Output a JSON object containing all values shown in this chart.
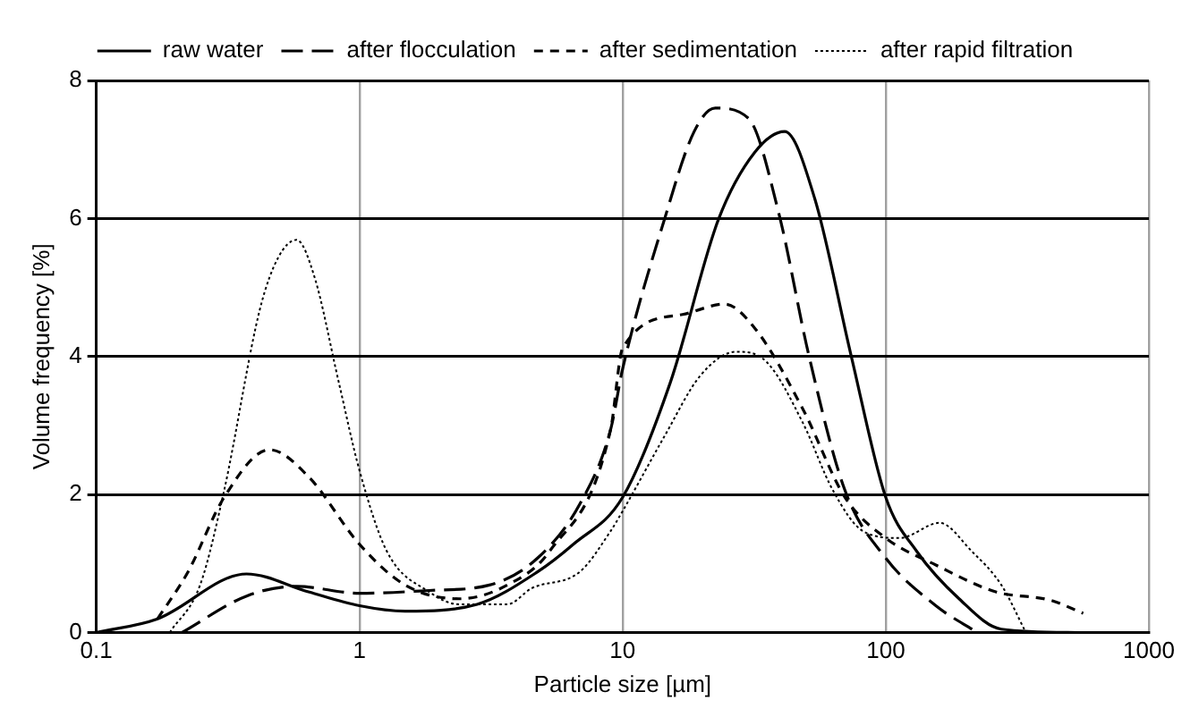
{
  "chart_data": {
    "type": "line",
    "xlabel": "Particle size [µm]",
    "ylabel": "Volume frequency [%]",
    "log": "x",
    "xlim": [
      0.1,
      1000
    ],
    "xticks": [
      0.1,
      1,
      10,
      100,
      1000
    ],
    "ylim": [
      0,
      8
    ],
    "yticks": [
      0,
      2,
      4,
      6,
      8
    ],
    "grid": true,
    "legend": "top",
    "marker": "none",
    "series": [
      {
        "name": "raw water",
        "color": "#000000",
        "line_style": "solid",
        "x": [
          0.1,
          0.171,
          0.372,
          0.64,
          1,
          1.49,
          2.8,
          4.75,
          6.5,
          10,
          15.2,
          23.1,
          31.8,
          41.3,
          53.8,
          73.8,
          100,
          131,
          190,
          275,
          550
        ],
        "values": [
          0,
          0.2,
          0.85,
          0.59,
          0.39,
          0.31,
          0.41,
          0.88,
          1.28,
          1.96,
          3.63,
          5.98,
          6.96,
          7.26,
          6.28,
          4.02,
          1.96,
          1.18,
          0.49,
          0.05,
          0
        ]
      },
      {
        "name": "after flocculation",
        "color": "#000000",
        "line_style": "dashed",
        "x": [
          0.211,
          0.378,
          0.577,
          1,
          1.84,
          3.12,
          4.75,
          6.87,
          9.0,
          10,
          14.4,
          18.7,
          22.5,
          30.1,
          39.2,
          51.0,
          70,
          100,
          155,
          223
        ],
        "values": [
          0,
          0.54,
          0.67,
          0.57,
          0.61,
          0.69,
          1.08,
          1.86,
          2.94,
          3.82,
          5.98,
          7.26,
          7.6,
          7.45,
          6.08,
          4.02,
          2.06,
          1.08,
          0.39,
          0
        ]
      },
      {
        "name": "after sedimentation",
        "color": "#000000",
        "line_style": "dashed",
        "x": [
          0.171,
          0.223,
          0.306,
          0.455,
          0.64,
          1,
          1.49,
          2.39,
          3.65,
          5.28,
          9.0,
          10,
          16.9,
          24.4,
          31.8,
          48.4,
          70,
          100,
          155,
          262,
          421,
          563
        ],
        "values": [
          0.2,
          0.88,
          1.96,
          2.65,
          2.26,
          1.28,
          0.69,
          0.49,
          0.69,
          1.18,
          2.94,
          4.12,
          4.61,
          4.76,
          4.41,
          3.24,
          1.96,
          1.37,
          0.98,
          0.59,
          0.47,
          0.28
        ]
      },
      {
        "name": "after rapid filtration",
        "color": "#000000",
        "line_style": "dotted",
        "x": [
          0.19,
          0.248,
          0.306,
          0.42,
          0.492,
          0.577,
          0.675,
          0.834,
          1,
          1.27,
          1.84,
          2.39,
          3.65,
          4.5,
          6.87,
          9.0,
          10,
          14.4,
          19.8,
          27.1,
          35.3,
          48.4,
          63,
          82,
          113,
          160,
          212,
          275,
          341
        ],
        "values": [
          0,
          0.69,
          2.06,
          4.71,
          5.44,
          5.69,
          5.15,
          3.63,
          2.35,
          1.18,
          0.59,
          0.41,
          0.41,
          0.64,
          0.88,
          1.47,
          1.76,
          2.84,
          3.73,
          4.07,
          3.92,
          3.04,
          2.06,
          1.47,
          1.37,
          1.59,
          1.18,
          0.69,
          0
        ]
      }
    ]
  }
}
